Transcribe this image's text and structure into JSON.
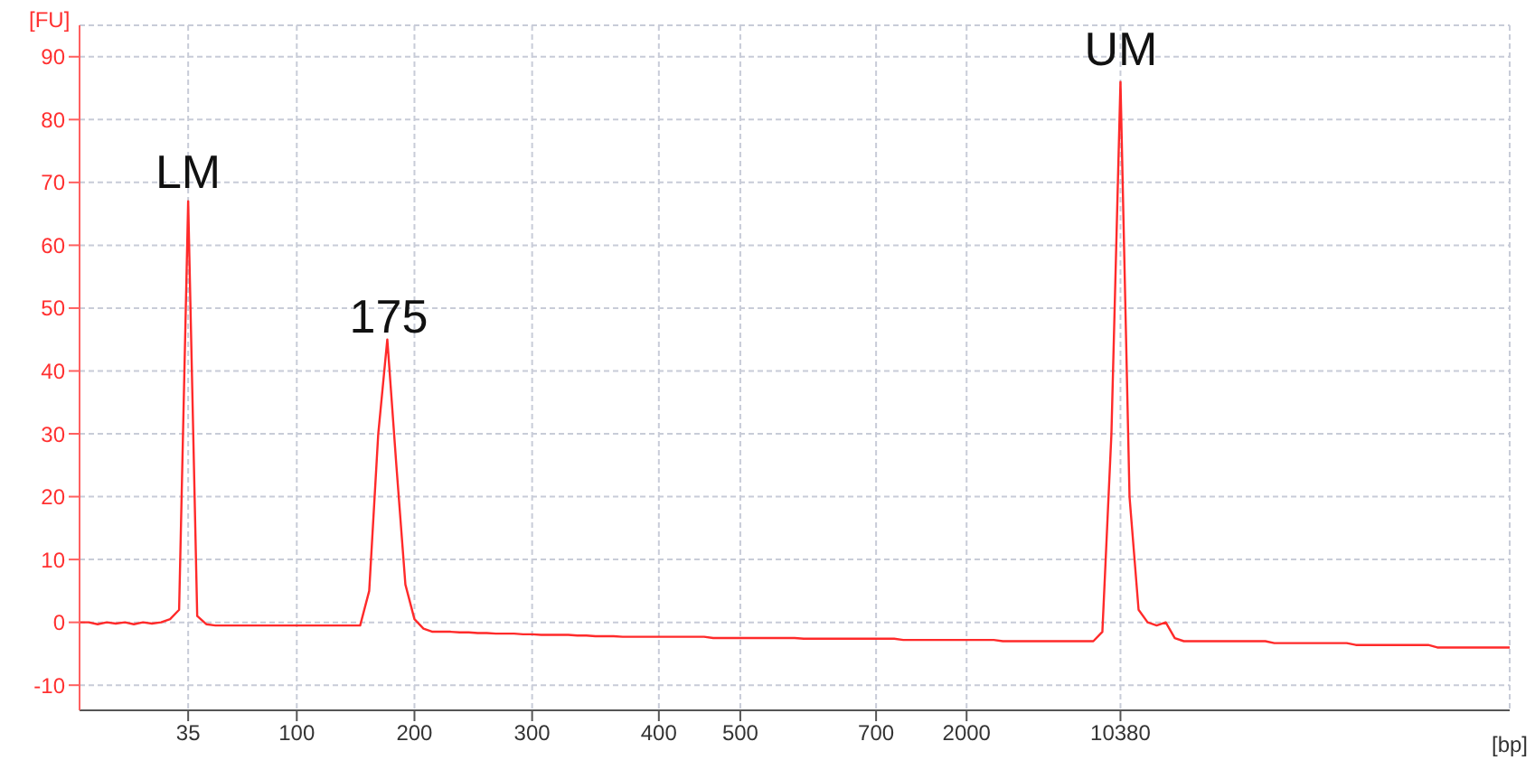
{
  "chart_data": {
    "type": "line",
    "xlabel": "[bp]",
    "ylabel": "[FU]",
    "annotations": [
      "LM",
      "175",
      "UM"
    ],
    "categories": [
      null,
      null,
      null,
      null,
      null,
      null,
      null,
      null,
      null,
      null,
      null,
      null,
      "35",
      null,
      null,
      null,
      null,
      null,
      null,
      null,
      null,
      null,
      null,
      null,
      "100",
      null,
      null,
      null,
      null,
      null,
      null,
      null,
      null,
      null,
      null,
      null,
      null,
      "200",
      null,
      null,
      null,
      null,
      null,
      null,
      null,
      null,
      null,
      null,
      null,
      null,
      "300",
      null,
      null,
      null,
      null,
      null,
      null,
      null,
      null,
      null,
      null,
      null,
      null,
      null,
      "400",
      null,
      null,
      null,
      null,
      null,
      null,
      null,
      null,
      "500",
      null,
      null,
      null,
      null,
      null,
      null,
      null,
      null,
      null,
      null,
      null,
      null,
      null,
      null,
      "700",
      null,
      null,
      null,
      null,
      null,
      null,
      null,
      null,
      null,
      "2000",
      null,
      null,
      null,
      null,
      null,
      null,
      null,
      null,
      null,
      null,
      null,
      null,
      null,
      null,
      null,
      null,
      "10380",
      null,
      null,
      null,
      null,
      null,
      null,
      null,
      null,
      null,
      null,
      null,
      null,
      null,
      null,
      null,
      null,
      null,
      null,
      null,
      null,
      null,
      null,
      null,
      null,
      null,
      null,
      null,
      null,
      null,
      null,
      null,
      null,
      null,
      null,
      null,
      null,
      null,
      null,
      null,
      null,
      null,
      null,
      null
    ],
    "series": [
      {
        "color": "#ff2a2a",
        "values": [
          0,
          0,
          -0.3,
          0,
          -0.2,
          0,
          -0.3,
          0,
          -0.2,
          0,
          0.5,
          2,
          67,
          1,
          -0.3,
          -0.5,
          -0.5,
          -0.5,
          -0.5,
          -0.5,
          -0.5,
          -0.5,
          -0.5,
          -0.5,
          -0.5,
          -0.5,
          -0.5,
          -0.5,
          -0.5,
          -0.5,
          -0.5,
          -0.5,
          5,
          30,
          45,
          25,
          6,
          0.5,
          -1,
          -1.5,
          -1.5,
          -1.5,
          -1.6,
          -1.6,
          -1.7,
          -1.7,
          -1.8,
          -1.8,
          -1.8,
          -1.9,
          -1.9,
          -2,
          -2,
          -2,
          -2,
          -2.1,
          -2.1,
          -2.2,
          -2.2,
          -2.2,
          -2.3,
          -2.3,
          -2.3,
          -2.3,
          -2.3,
          -2.3,
          -2.3,
          -2.3,
          -2.3,
          -2.3,
          -2.5,
          -2.5,
          -2.5,
          -2.5,
          -2.5,
          -2.5,
          -2.5,
          -2.5,
          -2.5,
          -2.5,
          -2.6,
          -2.6,
          -2.6,
          -2.6,
          -2.6,
          -2.6,
          -2.6,
          -2.6,
          -2.6,
          -2.6,
          -2.6,
          -2.8,
          -2.8,
          -2.8,
          -2.8,
          -2.8,
          -2.8,
          -2.8,
          -2.8,
          -2.8,
          -2.8,
          -2.8,
          -3,
          -3,
          -3,
          -3,
          -3,
          -3,
          -3,
          -3,
          -3,
          -3,
          -3,
          -1.5,
          30,
          86,
          20,
          2,
          0,
          -0.5,
          0,
          -2.5,
          -3,
          -3,
          -3,
          -3,
          -3,
          -3,
          -3,
          -3,
          -3,
          -3,
          -3.3,
          -3.3,
          -3.3,
          -3.3,
          -3.3,
          -3.3,
          -3.3,
          -3.3,
          -3.3,
          -3.6,
          -3.6,
          -3.6,
          -3.6,
          -3.6,
          -3.6,
          -3.6,
          -3.6,
          -3.6,
          -4,
          -4,
          -4,
          -4,
          -4,
          -4,
          -4,
          -4,
          -4
        ]
      }
    ],
    "ylim": [
      -14,
      95
    ],
    "yticks": [
      -10,
      0,
      10,
      20,
      30,
      40,
      50,
      60,
      70,
      80,
      90
    ],
    "grid": true
  }
}
